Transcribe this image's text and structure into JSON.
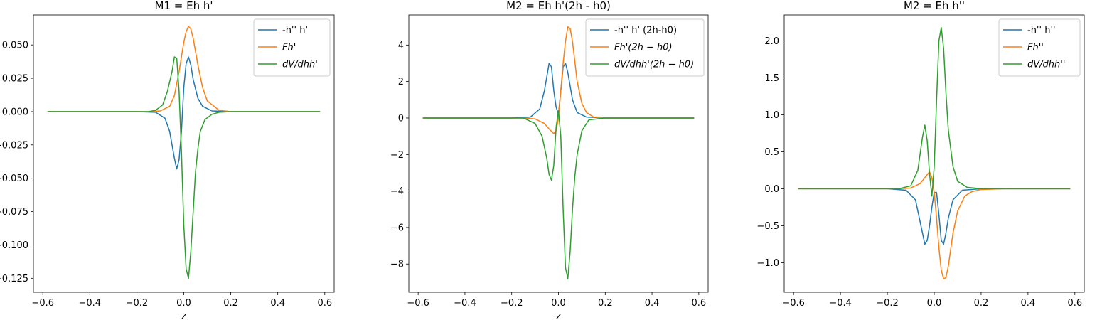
{
  "chart_data": [
    {
      "type": "line",
      "title": "M1 = Eh h'",
      "xlabel": "z",
      "ylabel": "",
      "xlim": [
        -0.64,
        0.64
      ],
      "ylim": [
        -0.1355,
        0.0725
      ],
      "xticks": [
        -0.6,
        -0.4,
        -0.2,
        0.0,
        0.2,
        0.4,
        0.6
      ],
      "xtick_labels": [
        "−0.6",
        "−0.4",
        "−0.2",
        "0.0",
        "0.2",
        "0.4",
        "0.6"
      ],
      "yticks": [
        -0.125,
        -0.1,
        -0.075,
        -0.05,
        -0.025,
        0.0,
        0.025,
        0.05
      ],
      "ytick_labels": [
        "−0.125",
        "−0.100",
        "−0.075",
        "−0.050",
        "−0.025",
        "0.000",
        "0.025",
        "0.050"
      ],
      "legend": "top-right",
      "series": [
        {
          "name": "-h'' h'",
          "color": "#1f77b4",
          "x": [
            -0.58,
            -0.2,
            -0.12,
            -0.08,
            -0.06,
            -0.04,
            -0.03,
            -0.02,
            -0.01,
            0.0,
            0.01,
            0.02,
            0.03,
            0.04,
            0.06,
            0.08,
            0.12,
            0.2,
            0.58
          ],
          "y": [
            0,
            0,
            -0.0005,
            -0.005,
            -0.015,
            -0.035,
            -0.043,
            -0.036,
            -0.015,
            0.018,
            0.036,
            0.041,
            0.035,
            0.024,
            0.01,
            0.004,
            0.0005,
            0,
            0
          ]
        },
        {
          "name": "Fh'",
          "color": "#ff7f0e",
          "x": [
            -0.58,
            -0.15,
            -0.1,
            -0.06,
            -0.04,
            -0.02,
            0.0,
            0.01,
            0.02,
            0.03,
            0.04,
            0.06,
            0.08,
            0.1,
            0.15,
            0.2,
            0.58
          ],
          "y": [
            0,
            0,
            0.0005,
            0.004,
            0.012,
            0.03,
            0.052,
            0.06,
            0.064,
            0.062,
            0.055,
            0.035,
            0.018,
            0.008,
            0.001,
            0,
            0
          ]
        },
        {
          "name": "dV/dhh'",
          "color": "#2ca02c",
          "x": [
            -0.58,
            -0.15,
            -0.12,
            -0.09,
            -0.07,
            -0.05,
            -0.04,
            -0.03,
            -0.02,
            -0.01,
            0.0,
            0.01,
            0.02,
            0.03,
            0.04,
            0.05,
            0.06,
            0.07,
            0.09,
            0.12,
            0.15,
            0.2,
            0.58
          ],
          "y": [
            0,
            0,
            0.001,
            0.005,
            0.015,
            0.03,
            0.041,
            0.04,
            0.015,
            -0.03,
            -0.085,
            -0.118,
            -0.125,
            -0.105,
            -0.075,
            -0.045,
            -0.028,
            -0.015,
            -0.006,
            -0.002,
            -0.0005,
            0,
            0
          ]
        }
      ]
    },
    {
      "type": "line",
      "title": "M2 = Eh h'(2h - h0)",
      "xlabel": "z",
      "ylabel": "",
      "xlim": [
        -0.64,
        0.64
      ],
      "ylim": [
        -9.55,
        5.65
      ],
      "xticks": [
        -0.6,
        -0.4,
        -0.2,
        0.0,
        0.2,
        0.4,
        0.6
      ],
      "xtick_labels": [
        "−0.6",
        "−0.4",
        "−0.2",
        "0.0",
        "0.2",
        "0.4",
        "0.6"
      ],
      "yticks": [
        -8,
        -6,
        -4,
        -2,
        0,
        2,
        4
      ],
      "ytick_labels": [
        "−8",
        "−6",
        "−4",
        "−2",
        "0",
        "2",
        "4"
      ],
      "legend": "top-right",
      "series": [
        {
          "name": "-h'' h' (2h-h0)",
          "color": "#1f77b4",
          "x": [
            -0.58,
            -0.2,
            -0.12,
            -0.08,
            -0.06,
            -0.04,
            -0.03,
            -0.02,
            -0.01,
            0.0,
            0.01,
            0.02,
            0.03,
            0.04,
            0.06,
            0.08,
            0.12,
            0.2,
            0.58
          ],
          "y": [
            0,
            0,
            0.05,
            0.5,
            1.5,
            3.0,
            2.8,
            1.5,
            0.6,
            0.2,
            1.5,
            2.8,
            3.0,
            2.5,
            1.0,
            0.3,
            0.05,
            0,
            0
          ]
        },
        {
          "name": "Fh'(2h − h0)",
          "color": "#ff7f0e",
          "x": [
            -0.58,
            -0.15,
            -0.1,
            -0.06,
            -0.04,
            -0.02,
            -0.01,
            0.0,
            0.01,
            0.02,
            0.03,
            0.04,
            0.05,
            0.06,
            0.08,
            0.1,
            0.12,
            0.15,
            0.2,
            0.58
          ],
          "y": [
            0,
            0,
            -0.05,
            -0.3,
            -0.6,
            -0.85,
            -0.7,
            0,
            1.5,
            3.0,
            4.2,
            5.0,
            4.9,
            4.2,
            2.0,
            0.8,
            0.3,
            0.05,
            0,
            0
          ]
        },
        {
          "name": "dV/dhh'(2h − h0)",
          "color": "#2ca02c",
          "x": [
            -0.58,
            -0.15,
            -0.1,
            -0.07,
            -0.05,
            -0.04,
            -0.03,
            -0.02,
            -0.01,
            0.0,
            0.01,
            0.02,
            0.03,
            0.04,
            0.05,
            0.06,
            0.07,
            0.08,
            0.1,
            0.13,
            0.2,
            0.58
          ],
          "y": [
            0,
            0,
            -0.3,
            -1.0,
            -2.2,
            -3.1,
            -3.4,
            -2.6,
            -0.5,
            0.4,
            -1.0,
            -5.0,
            -8.2,
            -8.8,
            -7.3,
            -5.0,
            -3.2,
            -2.0,
            -0.7,
            -0.1,
            0,
            0
          ]
        }
      ]
    },
    {
      "type": "line",
      "title": "M2 = Eh h''",
      "xlabel": "",
      "ylabel": "",
      "xlim": [
        -0.64,
        0.64
      ],
      "ylim": [
        -1.4,
        2.35
      ],
      "xticks": [
        -0.6,
        -0.4,
        -0.2,
        0.0,
        0.2,
        0.4,
        0.6
      ],
      "xtick_labels": [
        "−0.6",
        "−0.4",
        "−0.2",
        "0.0",
        "0.2",
        "0.4",
        "0.6"
      ],
      "yticks": [
        -1.0,
        -0.5,
        0.0,
        0.5,
        1.0,
        1.5,
        2.0
      ],
      "ytick_labels": [
        "−1.0",
        "−0.5",
        "0.0",
        "0.5",
        "1.0",
        "1.5",
        "2.0"
      ],
      "legend": "top-right",
      "series": [
        {
          "name": "-h'' h''",
          "color": "#1f77b4",
          "x": [
            -0.58,
            -0.2,
            -0.12,
            -0.08,
            -0.06,
            -0.04,
            -0.03,
            -0.02,
            -0.01,
            0.0,
            0.01,
            0.02,
            0.03,
            0.04,
            0.05,
            0.06,
            0.08,
            0.12,
            0.2,
            0.58
          ],
          "y": [
            0,
            0,
            -0.02,
            -0.15,
            -0.45,
            -0.75,
            -0.7,
            -0.5,
            -0.25,
            -0.05,
            -0.05,
            -0.35,
            -0.7,
            -0.75,
            -0.6,
            -0.4,
            -0.15,
            -0.02,
            0,
            0
          ]
        },
        {
          "name": "Fh''",
          "color": "#ff7f0e",
          "x": [
            -0.58,
            -0.15,
            -0.1,
            -0.06,
            -0.04,
            -0.02,
            -0.01,
            0.0,
            0.01,
            0.02,
            0.03,
            0.04,
            0.05,
            0.06,
            0.08,
            0.1,
            0.13,
            0.16,
            0.2,
            0.3,
            0.58
          ],
          "y": [
            0,
            0,
            0.01,
            0.07,
            0.15,
            0.23,
            0.15,
            -0.05,
            -0.4,
            -0.8,
            -1.1,
            -1.22,
            -1.2,
            -1.05,
            -0.6,
            -0.3,
            -0.1,
            -0.04,
            -0.01,
            0,
            0
          ]
        },
        {
          "name": "dV/dhh''",
          "color": "#2ca02c",
          "x": [
            -0.58,
            -0.15,
            -0.1,
            -0.07,
            -0.05,
            -0.04,
            -0.03,
            -0.02,
            -0.01,
            0.0,
            0.01,
            0.02,
            0.03,
            0.04,
            0.05,
            0.06,
            0.08,
            0.1,
            0.14,
            0.2,
            0.58
          ],
          "y": [
            0,
            0,
            0.04,
            0.25,
            0.7,
            0.86,
            0.65,
            0.2,
            -0.1,
            0.3,
            1.2,
            2.0,
            2.18,
            1.9,
            1.3,
            0.8,
            0.3,
            0.1,
            0.02,
            0,
            0
          ]
        }
      ]
    }
  ]
}
